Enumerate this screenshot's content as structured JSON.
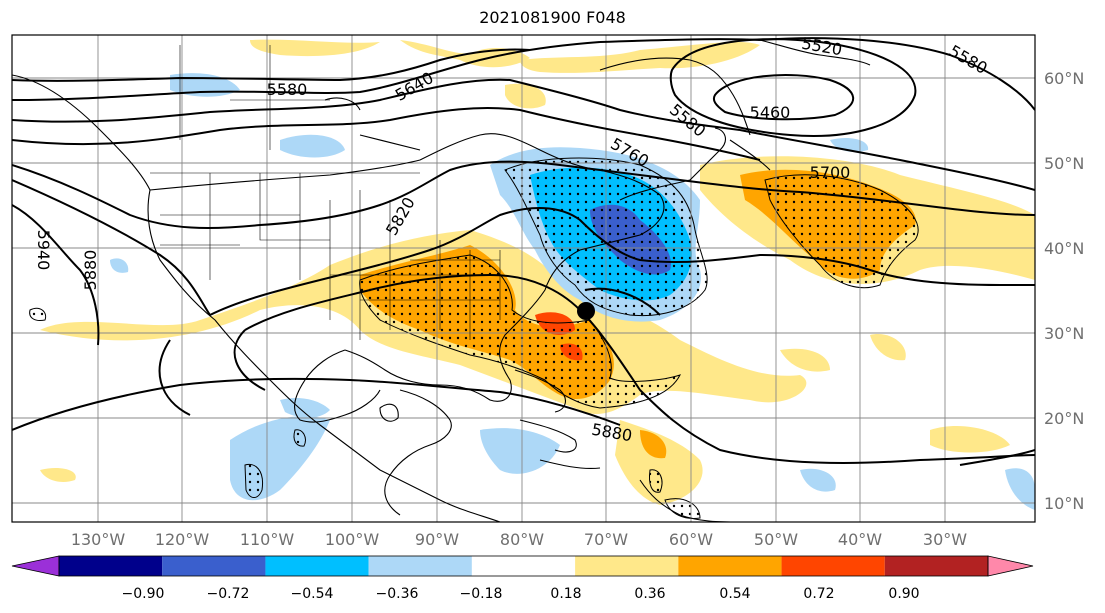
{
  "title": "2021081900 F048",
  "map": {
    "lon_labels": [
      "130°W",
      "120°W",
      "110°W",
      "100°W",
      "90°W",
      "80°W",
      "70°W",
      "60°W",
      "50°W",
      "40°W",
      "30°W"
    ],
    "lat_labels": [
      "60°N",
      "50°N",
      "40°N",
      "30°N",
      "20°N",
      "10°N"
    ],
    "contour_labels": [
      "5520",
      "5580",
      "5460",
      "5640",
      "5580",
      "5580",
      "5760",
      "5700",
      "5820",
      "5940",
      "5880",
      "5880"
    ],
    "storm_marker": "black-dot"
  },
  "colorbar": {
    "tick_labels": [
      "−0.90",
      "−0.72",
      "−0.54",
      "−0.36",
      "−0.18",
      "0.18",
      "0.36",
      "0.54",
      "0.72",
      "0.90"
    ],
    "colors": [
      "#9b30d8",
      "#00008b",
      "#3a5fcd",
      "#00bfff",
      "#add8f7",
      "#ffffff",
      "#ffe88a",
      "#ffa500",
      "#ff4500",
      "#b22222",
      "#ff88aa"
    ]
  }
}
